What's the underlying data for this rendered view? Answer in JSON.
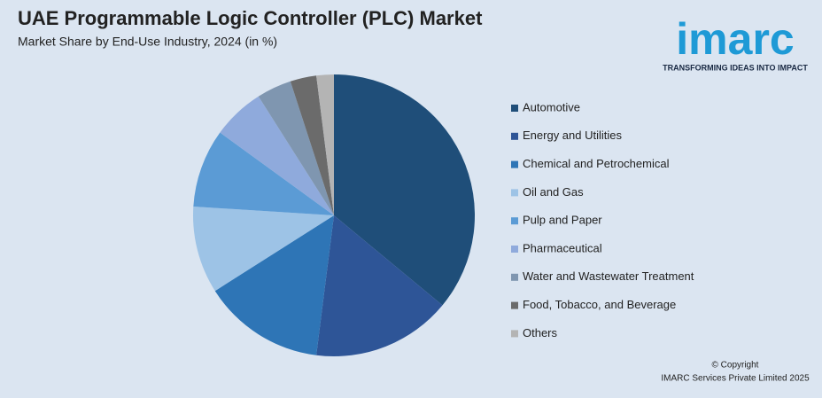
{
  "chart_data": {
    "type": "pie",
    "title": "UAE Programmable Logic Controller (PLC) Market",
    "subtitle": "Market Share by End-Use Industry, 2024 (in %)",
    "categories": [
      "Automotive",
      "Energy and Utilities",
      "Chemical and Petrochemical",
      "Oil and Gas",
      "Pulp and Paper",
      "Pharmaceutical",
      "Water and Wastewater Treatment",
      "Food, Tobacco, and Beverage",
      "Others"
    ],
    "values": [
      36,
      16,
      14,
      10,
      9,
      6,
      4,
      3,
      2
    ],
    "colors": [
      "#1f4e79",
      "#2e5597",
      "#2e75b6",
      "#9dc3e6",
      "#5b9bd5",
      "#8faadc",
      "#7f96b0",
      "#6b6b6b",
      "#b4b4b4"
    ],
    "legend": "right"
  },
  "logo": {
    "name": "imarc",
    "tagline": "TRANSFORMING IDEAS INTO IMPACT"
  },
  "footer": {
    "copyright": "© Copyright",
    "company": "IMARC Services Private Limited 2025"
  }
}
